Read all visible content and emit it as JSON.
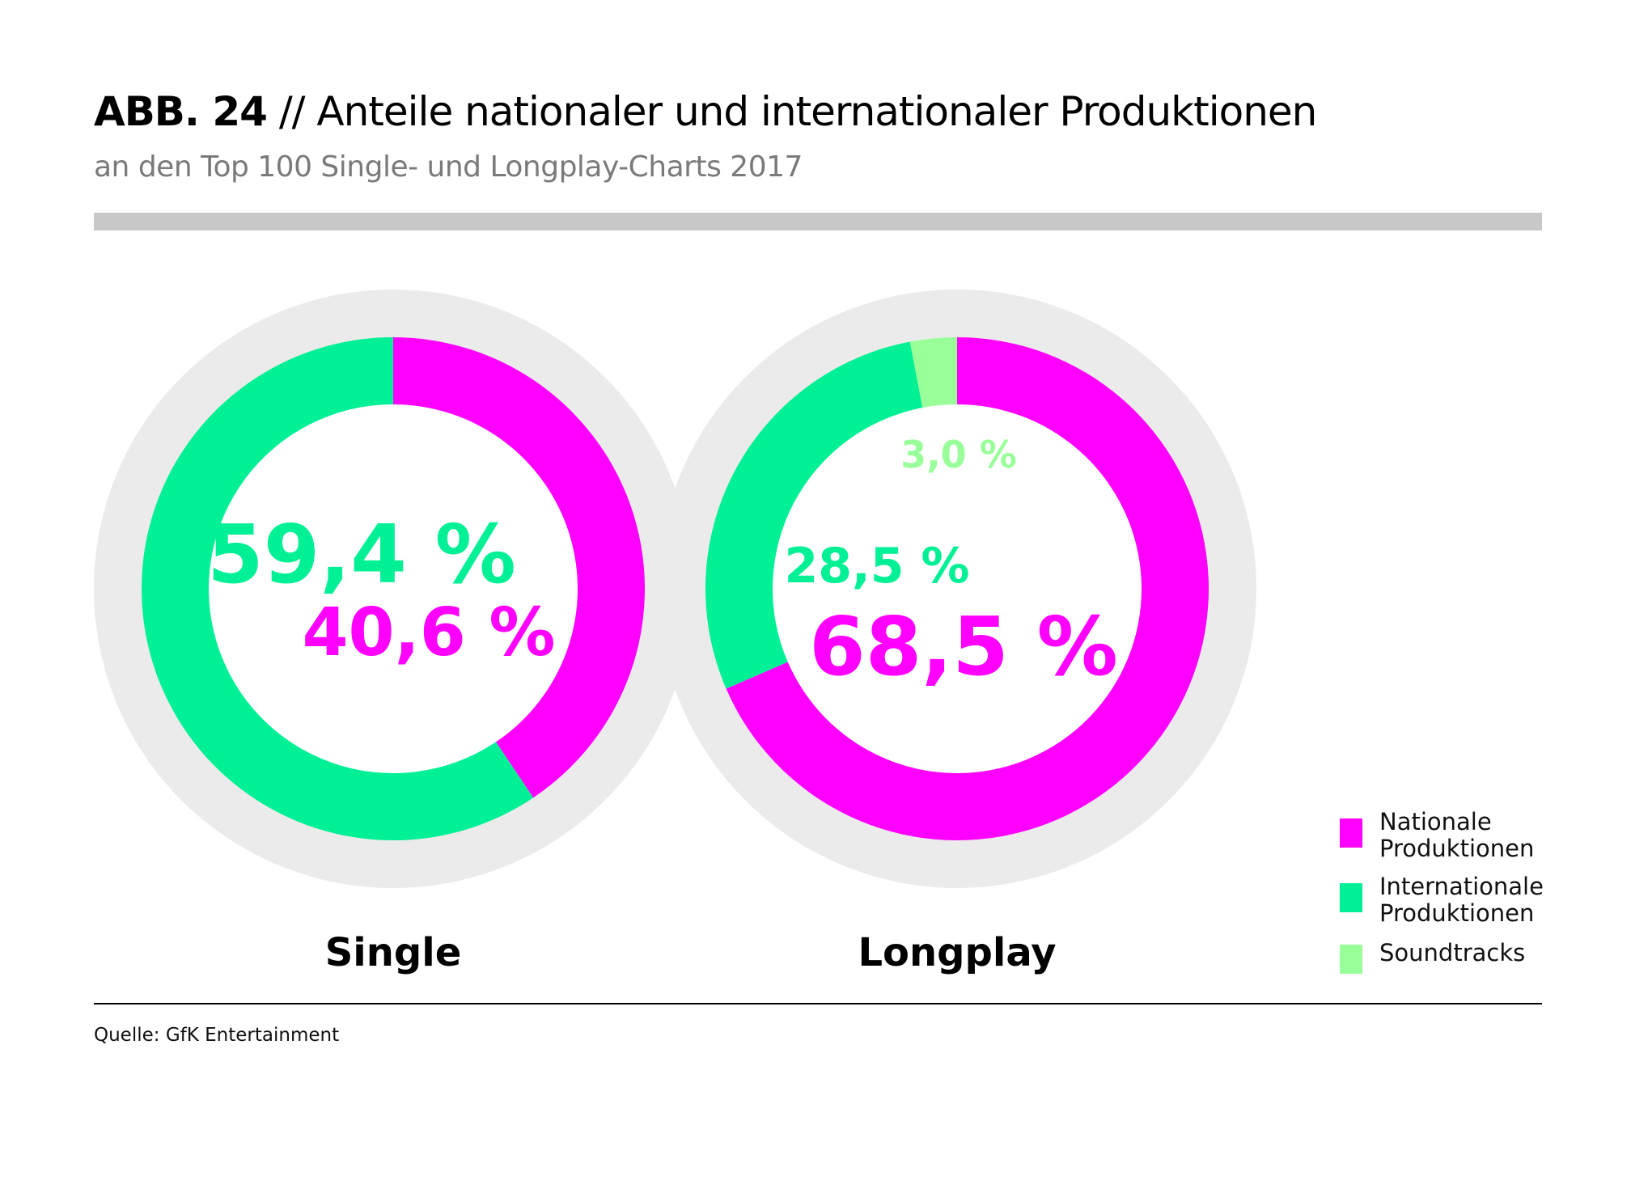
{
  "header": {
    "abb": "ABB. 24",
    "title_rest": "// Anteile nationaler und internationaler Produktionen",
    "subtitle": "an den Top 100 Single- und Longplay-Charts 2017"
  },
  "colors": {
    "national": "#ff00ff",
    "international": "#00f095",
    "soundtracks": "#99ff99",
    "ring": "#ebebeb"
  },
  "chart_data": [
    {
      "type": "pie",
      "label": "Single",
      "segments": [
        {
          "name": "Nationale Produktionen",
          "value": 40.6,
          "label": "40,6 %"
        },
        {
          "name": "Internationale Produktionen",
          "value": 59.4,
          "label": "59,4 %"
        }
      ]
    },
    {
      "type": "pie",
      "label": "Longplay",
      "segments": [
        {
          "name": "Nationale Produktionen",
          "value": 68.5,
          "label": "68,5 %"
        },
        {
          "name": "Internationale Produktionen",
          "value": 28.5,
          "label": "28,5 %"
        },
        {
          "name": "Soundtracks",
          "value": 3.0,
          "label": "3,0 %"
        }
      ]
    }
  ],
  "legend": [
    {
      "label": "Nationale Produktionen",
      "key": "national"
    },
    {
      "label": "Internationale Produktionen",
      "key": "international"
    },
    {
      "label": "Soundtracks",
      "key": "soundtracks"
    }
  ],
  "source": "Quelle: GfK Entertainment"
}
